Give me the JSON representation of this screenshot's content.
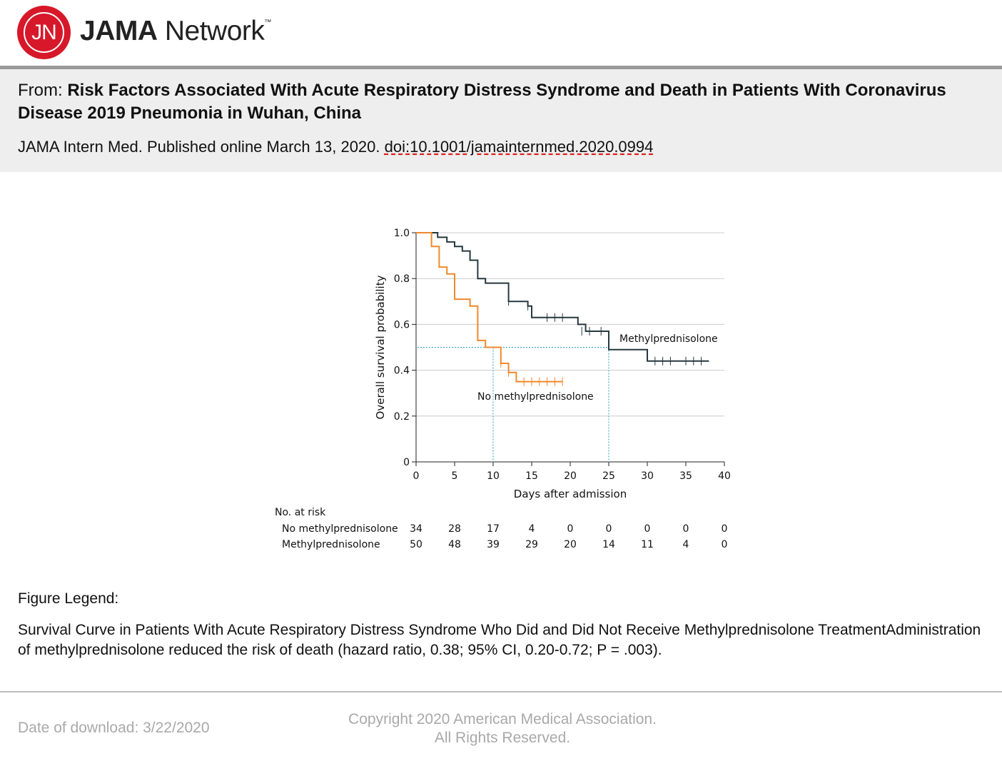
{
  "header": {
    "logo_mark": "JN",
    "logo_brand_bold": "JAMA",
    "logo_brand_rest": " Network",
    "logo_tm": "™"
  },
  "article": {
    "from_prefix": "From: ",
    "title": "Risk Factors Associated With Acute Respiratory Distress Syndrome and Death in Patients With Coronavirus Disease 2019 Pneumonia in Wuhan, China",
    "citation": "JAMA Intern Med. Published online  March 13, 2020. ",
    "doi": "doi:10.1001/jamainternmed.2020.0994"
  },
  "chart_data": {
    "type": "line",
    "subtype": "kaplan-meier",
    "title": "",
    "xlabel": "Days after admission",
    "ylabel": "Overall survival probability",
    "xlim": [
      0,
      40
    ],
    "ylim": [
      0,
      1
    ],
    "x_ticks": [
      0,
      5,
      10,
      15,
      20,
      25,
      30,
      35,
      40
    ],
    "x_tick_labels": [
      "0",
      "5",
      "10",
      "15",
      "20",
      "25",
      "30",
      "35",
      "40"
    ],
    "y_ticks": [
      0,
      0.2,
      0.4,
      0.6,
      0.8,
      1.0
    ],
    "y_tick_labels": [
      "0",
      "0.2",
      "0.4",
      "0.6",
      "0.8",
      "1.0"
    ],
    "grid": "horizontal",
    "median_line": 0.5,
    "series": [
      {
        "name": "Methylprednisolone",
        "color": "#27383f",
        "steps": [
          [
            0,
            1.0
          ],
          [
            2.8,
            0.98
          ],
          [
            4,
            0.96
          ],
          [
            5,
            0.94
          ],
          [
            6,
            0.92
          ],
          [
            7,
            0.88
          ],
          [
            8,
            0.8
          ],
          [
            9,
            0.78
          ],
          [
            12,
            0.7
          ],
          [
            14.5,
            0.68
          ],
          [
            15,
            0.63
          ],
          [
            21,
            0.6
          ],
          [
            22,
            0.57
          ],
          [
            25,
            0.49
          ],
          [
            30,
            0.44
          ],
          [
            38,
            0.44
          ]
        ],
        "censored": [
          [
            12,
            0.7
          ],
          [
            14.5,
            0.68
          ],
          [
            17,
            0.63
          ],
          [
            18,
            0.63
          ],
          [
            19,
            0.63
          ],
          [
            21.5,
            0.57
          ],
          [
            22.5,
            0.57
          ],
          [
            24,
            0.57
          ],
          [
            31,
            0.44
          ],
          [
            32,
            0.44
          ],
          [
            33,
            0.44
          ],
          [
            35,
            0.44
          ],
          [
            36,
            0.44
          ],
          [
            37,
            0.44
          ]
        ],
        "median_survival_days": 25
      },
      {
        "name": "No methylprednisolone",
        "color": "#f0892b",
        "steps": [
          [
            0,
            1.0
          ],
          [
            2,
            0.94
          ],
          [
            3,
            0.85
          ],
          [
            4,
            0.82
          ],
          [
            5,
            0.71
          ],
          [
            7,
            0.68
          ],
          [
            8,
            0.53
          ],
          [
            9,
            0.5
          ],
          [
            11,
            0.43
          ],
          [
            12,
            0.39
          ],
          [
            13,
            0.35
          ],
          [
            19,
            0.35
          ]
        ],
        "censored": [
          [
            11,
            0.43
          ],
          [
            12,
            0.39
          ],
          [
            14,
            0.35
          ],
          [
            15,
            0.35
          ],
          [
            16,
            0.35
          ],
          [
            17,
            0.35
          ],
          [
            18,
            0.35
          ],
          [
            19,
            0.35
          ]
        ],
        "median_survival_days": 10
      }
    ],
    "risk_table": {
      "title": "No. at risk",
      "timepoints": [
        0,
        5,
        10,
        15,
        20,
        25,
        30,
        35,
        40
      ],
      "rows": [
        {
          "name": "No methylprednisolone",
          "values": [
            34,
            28,
            17,
            4,
            0,
            0,
            0,
            0,
            0
          ]
        },
        {
          "name": "Methylprednisolone",
          "values": [
            50,
            48,
            39,
            29,
            20,
            14,
            11,
            4,
            0
          ]
        }
      ]
    }
  },
  "legend": {
    "heading": "Figure Legend:",
    "body": "Survival Curve in Patients With Acute Respiratory Distress Syndrome Who Did and Did Not Receive Methylprednisolone TreatmentAdministration of methylprednisolone reduced the risk of death (hazard ratio, 0.38; 95% CI, 0.20-0.72; P = .003)."
  },
  "footer": {
    "download": "Date of download:  3/22/2020",
    "copyright_line1": "Copyright 2020 American Medical Association.",
    "copyright_line2": "All Rights Reserved."
  }
}
